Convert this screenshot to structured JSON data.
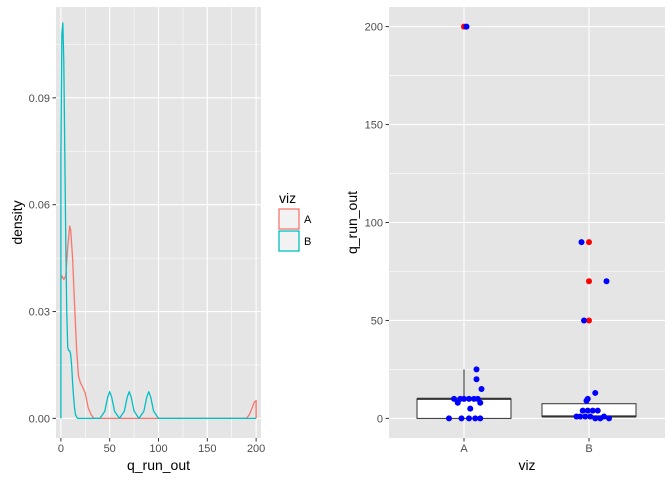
{
  "colors": {
    "A": "#F8766D",
    "B": "#00BFC4",
    "panel_bg": "#E5E5E5",
    "grid": "#FFFFFF",
    "point_blue": "#0000FF",
    "point_red": "#FF0000"
  },
  "chart_data": [
    {
      "type": "line",
      "subtype": "density",
      "xlabel": "q_run_out",
      "ylabel": "density",
      "xlim": [
        -5,
        205
      ],
      "ylim": [
        -0.0055,
        0.1155
      ],
      "x_ticks": [
        0,
        50,
        100,
        150,
        200
      ],
      "x_tick_labels": [
        "0",
        "50",
        "100",
        "150",
        "200"
      ],
      "y_ticks": [
        0.0,
        0.03,
        0.06,
        0.09
      ],
      "y_tick_labels": [
        "0.00",
        "0.03",
        "0.06",
        "0.09"
      ],
      "grid": true,
      "legend": {
        "title": "viz",
        "position": "right",
        "entries": [
          "A",
          "B"
        ]
      },
      "series": [
        {
          "name": "A",
          "x": [
            0,
            1,
            3,
            5,
            7,
            9,
            10,
            12,
            14,
            16,
            18,
            20,
            22,
            25,
            28,
            31,
            34,
            36,
            40,
            100,
            150,
            190,
            193,
            196,
            198,
            200,
            200
          ],
          "y": [
            0.039,
            0.04,
            0.039,
            0.04,
            0.048,
            0.054,
            0.053,
            0.045,
            0.032,
            0.02,
            0.012,
            0.01,
            0.009,
            0.007,
            0.003,
            0.001,
            0.0,
            0.0,
            0.0,
            0.0,
            0.0,
            0.0,
            0.001,
            0.003,
            0.0045,
            0.005,
            0.0
          ]
        },
        {
          "name": "B",
          "x": [
            0,
            0,
            1,
            2,
            3,
            4,
            5,
            6,
            7,
            8,
            9,
            10,
            11,
            12,
            13,
            14,
            15,
            17,
            19,
            21,
            40,
            45,
            48,
            50,
            52,
            55,
            60,
            65,
            68,
            70,
            72,
            75,
            80,
            85,
            88,
            90,
            92,
            95,
            100,
            200
          ],
          "y": [
            0.0,
            0.073,
            0.108,
            0.111,
            0.1,
            0.075,
            0.05,
            0.03,
            0.02,
            0.019,
            0.019,
            0.018,
            0.015,
            0.01,
            0.006,
            0.003,
            0.001,
            0.0,
            0.0,
            0.0,
            0.0,
            0.002,
            0.006,
            0.0075,
            0.006,
            0.002,
            0.0,
            0.002,
            0.006,
            0.0075,
            0.006,
            0.002,
            0.0,
            0.002,
            0.006,
            0.0075,
            0.006,
            0.002,
            0.0,
            0.0
          ]
        }
      ]
    },
    {
      "type": "scatter",
      "subtype": "boxplot-with-jitter",
      "xlabel": "viz",
      "ylabel": "q_run_out",
      "categories": [
        "A",
        "B"
      ],
      "ylim": [
        -10,
        210
      ],
      "y_ticks": [
        0,
        50,
        100,
        150,
        200
      ],
      "y_tick_labels": [
        "0",
        "50",
        "100",
        "150",
        "200"
      ],
      "grid": true,
      "boxes": [
        {
          "category": "A",
          "q1": 0,
          "median": 10,
          "q3": 10,
          "whisker_low": 0,
          "whisker_high": 25
        },
        {
          "category": "B",
          "q1": 1,
          "median": 1,
          "q3": 7.5,
          "whisker_low": 0,
          "whisker_high": 7.5
        }
      ],
      "outliers": [
        {
          "category": "A",
          "y": 200
        },
        {
          "category": "B",
          "y": 90
        },
        {
          "category": "B",
          "y": 70
        },
        {
          "category": "B",
          "y": 50
        }
      ],
      "points": [
        {
          "category": "A",
          "jitter": 0.02,
          "y": 200
        },
        {
          "category": "A",
          "jitter": 0.1,
          "y": 25
        },
        {
          "category": "A",
          "jitter": 0.1,
          "y": 20
        },
        {
          "category": "A",
          "jitter": 0.14,
          "y": 15
        },
        {
          "category": "A",
          "jitter": -0.08,
          "y": 10
        },
        {
          "category": "A",
          "jitter": -0.03,
          "y": 10
        },
        {
          "category": "A",
          "jitter": 0.0,
          "y": 10
        },
        {
          "category": "A",
          "jitter": 0.04,
          "y": 10
        },
        {
          "category": "A",
          "jitter": 0.08,
          "y": 10
        },
        {
          "category": "A",
          "jitter": 0.11,
          "y": 10
        },
        {
          "category": "A",
          "jitter": -0.05,
          "y": 8
        },
        {
          "category": "A",
          "jitter": 0.13,
          "y": 8
        },
        {
          "category": "A",
          "jitter": 0.05,
          "y": 5
        },
        {
          "category": "A",
          "jitter": -0.12,
          "y": 0
        },
        {
          "category": "A",
          "jitter": -0.02,
          "y": 0
        },
        {
          "category": "A",
          "jitter": 0.04,
          "y": 0
        },
        {
          "category": "A",
          "jitter": 0.09,
          "y": 0
        },
        {
          "category": "A",
          "jitter": 0.13,
          "y": 0
        },
        {
          "category": "B",
          "jitter": -0.06,
          "y": 90
        },
        {
          "category": "B",
          "jitter": 0.14,
          "y": 70
        },
        {
          "category": "B",
          "jitter": -0.04,
          "y": 50
        },
        {
          "category": "B",
          "jitter": 0.05,
          "y": 13
        },
        {
          "category": "B",
          "jitter": -0.01,
          "y": 10
        },
        {
          "category": "B",
          "jitter": -0.02,
          "y": 9
        },
        {
          "category": "B",
          "jitter": -0.05,
          "y": 4
        },
        {
          "category": "B",
          "jitter": -0.01,
          "y": 4
        },
        {
          "category": "B",
          "jitter": 0.03,
          "y": 4
        },
        {
          "category": "B",
          "jitter": 0.07,
          "y": 4
        },
        {
          "category": "B",
          "jitter": -0.1,
          "y": 1
        },
        {
          "category": "B",
          "jitter": -0.07,
          "y": 1
        },
        {
          "category": "B",
          "jitter": -0.03,
          "y": 1
        },
        {
          "category": "B",
          "jitter": 0.01,
          "y": 1
        },
        {
          "category": "B",
          "jitter": 0.05,
          "y": 0
        },
        {
          "category": "B",
          "jitter": 0.09,
          "y": 0
        },
        {
          "category": "B",
          "jitter": 0.12,
          "y": 1
        },
        {
          "category": "B",
          "jitter": 0.16,
          "y": 0
        }
      ]
    }
  ]
}
